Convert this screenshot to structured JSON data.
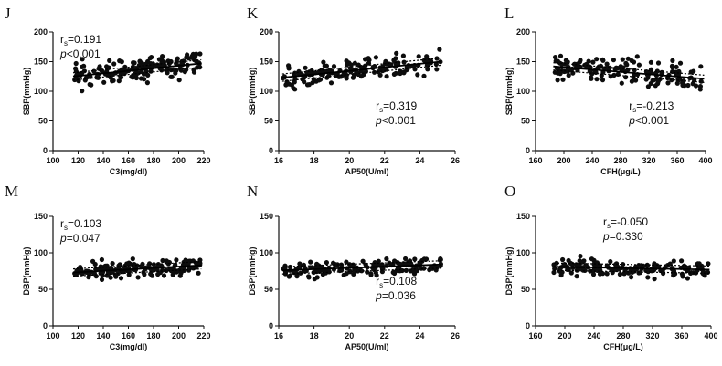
{
  "figure": {
    "panels": [
      "J",
      "K",
      "L",
      "M",
      "N",
      "O"
    ]
  },
  "chart_data": [
    {
      "panel": "J",
      "type": "scatter",
      "xlabel": "C3(mg/dl)",
      "ylabel": "SBP(mmHg)",
      "xlim": [
        100,
        220
      ],
      "ylim": [
        0,
        200
      ],
      "xticks": [
        100,
        120,
        140,
        160,
        180,
        200,
        220
      ],
      "yticks": [
        0,
        50,
        100,
        150,
        200
      ],
      "stats": {
        "rs_value": "=0.191",
        "p_label": "p",
        "p_value": "<0.001"
      },
      "stats_position": "top-left",
      "fit": {
        "x0": 116,
        "y0": 125,
        "x1": 218,
        "y1": 147
      },
      "points": {
        "n": 160,
        "x_range": [
          116,
          218
        ],
        "y_center_at_x0": 125,
        "y_center_at_x1": 147,
        "y_spread": 17,
        "seed": 11
      }
    },
    {
      "panel": "K",
      "type": "scatter",
      "xlabel": "AP50(U/ml)",
      "ylabel": "SBP(mmHg)",
      "xlim": [
        16,
        26
      ],
      "ylim": [
        0,
        200
      ],
      "xticks": [
        16,
        18,
        20,
        22,
        24,
        26
      ],
      "yticks": [
        0,
        50,
        100,
        150,
        200
      ],
      "stats": {
        "rs_value": "=0.319",
        "p_label": "p",
        "p_value": "<0.001"
      },
      "stats_position": "bottom-right",
      "fit": {
        "x0": 16.2,
        "y0": 123,
        "x1": 25.2,
        "y1": 150
      },
      "points": {
        "n": 160,
        "x_range": [
          16.2,
          25.2
        ],
        "y_center_at_x0": 123,
        "y_center_at_x1": 150,
        "y_spread": 17,
        "seed": 23
      }
    },
    {
      "panel": "L",
      "type": "scatter",
      "xlabel": "CFH(μg/L)",
      "ylabel": "SBP(mmHg)",
      "xlim": [
        160,
        400
      ],
      "ylim": [
        0,
        200
      ],
      "xticks": [
        160,
        200,
        240,
        280,
        320,
        360,
        400
      ],
      "yticks": [
        0,
        50,
        100,
        150,
        200
      ],
      "stats": {
        "rs_value": "=-0.213",
        "p_label": "p",
        "p_value": "<0.001"
      },
      "stats_position": "bottom-right",
      "fit": {
        "x0": 185,
        "y0": 142,
        "x1": 398,
        "y1": 121
      },
      "points": {
        "n": 160,
        "x_range": [
          185,
          398
        ],
        "y_center_at_x0": 142,
        "y_center_at_x1": 121,
        "y_spread": 18,
        "seed": 37
      }
    },
    {
      "panel": "M",
      "type": "scatter",
      "xlabel": "C3(mg/dl)",
      "ylabel": "DBP(mmHg)",
      "xlim": [
        100,
        220
      ],
      "ylim": [
        0,
        150
      ],
      "xticks": [
        100,
        120,
        140,
        160,
        180,
        200,
        220
      ],
      "yticks": [
        0,
        50,
        100,
        150
      ],
      "stats": {
        "rs_value": "=0.103",
        "p_label": "p",
        "p_value": "=0.047"
      },
      "stats_position": "top-left",
      "fit": {
        "x0": 116,
        "y0": 73,
        "x1": 218,
        "y1": 83
      },
      "points": {
        "n": 160,
        "x_range": [
          116,
          218
        ],
        "y_center_at_x0": 73,
        "y_center_at_x1": 83,
        "y_spread": 10,
        "seed": 41
      }
    },
    {
      "panel": "N",
      "type": "scatter",
      "xlabel": "AP50(U/ml)",
      "ylabel": "DBP(mmHg)",
      "xlim": [
        16,
        26
      ],
      "ylim": [
        0,
        150
      ],
      "xticks": [
        16,
        18,
        20,
        22,
        24,
        26
      ],
      "yticks": [
        0,
        50,
        100,
        150
      ],
      "stats": {
        "rs_value": "=0.108",
        "p_label": "p",
        "p_value": "=0.036"
      },
      "stats_position": "bottom-right",
      "fit": {
        "x0": 16.2,
        "y0": 76,
        "x1": 25.2,
        "y1": 84
      },
      "points": {
        "n": 160,
        "x_range": [
          16.2,
          25.2
        ],
        "y_center_at_x0": 76,
        "y_center_at_x1": 84,
        "y_spread": 10,
        "seed": 53
      }
    },
    {
      "panel": "O",
      "type": "scatter",
      "xlabel": "CFH(μg/L)",
      "ylabel": "DBP(mmHg)",
      "xlim": [
        160,
        400
      ],
      "ylim": [
        0,
        150
      ],
      "xticks": [
        160,
        200,
        240,
        280,
        320,
        360,
        400
      ],
      "yticks": [
        0,
        50,
        100,
        150
      ],
      "stats": {
        "rs_value": "=-0.050",
        "p_label": "p",
        "p_value": "=0.330"
      },
      "stats_position": "top-center",
      "fit": {
        "x0": 185,
        "y0": 81,
        "x1": 398,
        "y1": 77
      },
      "points": {
        "n": 160,
        "x_range": [
          185,
          398
        ],
        "y_center_at_x0": 81,
        "y_center_at_x1": 77,
        "y_spread": 10,
        "seed": 67
      }
    }
  ]
}
